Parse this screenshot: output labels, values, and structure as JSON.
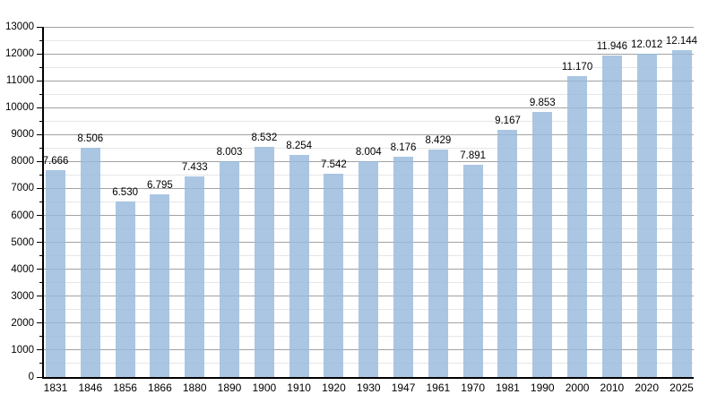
{
  "chart_data": {
    "type": "bar",
    "title": "",
    "xlabel": "",
    "ylabel": "",
    "categories": [
      "1831",
      "1846",
      "1856",
      "1866",
      "1880",
      "1890",
      "1900",
      "1910",
      "1920",
      "1930",
      "1947",
      "1961",
      "1970",
      "1981",
      "1990",
      "2000",
      "2010",
      "2020",
      "2025"
    ],
    "values": [
      7666,
      8506,
      6530,
      6795,
      7433,
      8003,
      8532,
      8254,
      7542,
      8004,
      8176,
      8429,
      7891,
      9167,
      9853,
      11170,
      11946,
      12012,
      12144
    ],
    "value_labels": [
      "7.666",
      "8.506",
      "6.530",
      "6.795",
      "7.433",
      "8.003",
      "8.532",
      "8.254",
      "7.542",
      "8.004",
      "8.176",
      "8.429",
      "7.891",
      "9.167",
      "9.853",
      "11.170",
      "11.946",
      "12.012",
      "12.144"
    ],
    "ylim": [
      0,
      13000
    ],
    "y_major_step": 1000,
    "y_minor_step": 500,
    "y_tick_labels": [
      "0",
      "1000",
      "2000",
      "3000",
      "4000",
      "5000",
      "6000",
      "7000",
      "8000",
      "9000",
      "10000",
      "11000",
      "12000",
      "13000"
    ],
    "grid": true,
    "legend": "none",
    "colors": {
      "bar_fill": "#98b9dc",
      "bar_opacity": 0.82,
      "major_grid": "#a2a2a2",
      "minor_grid": "#e6e6e6",
      "axis": "#000000",
      "text": "#000000",
      "background": "#ffffff"
    }
  }
}
